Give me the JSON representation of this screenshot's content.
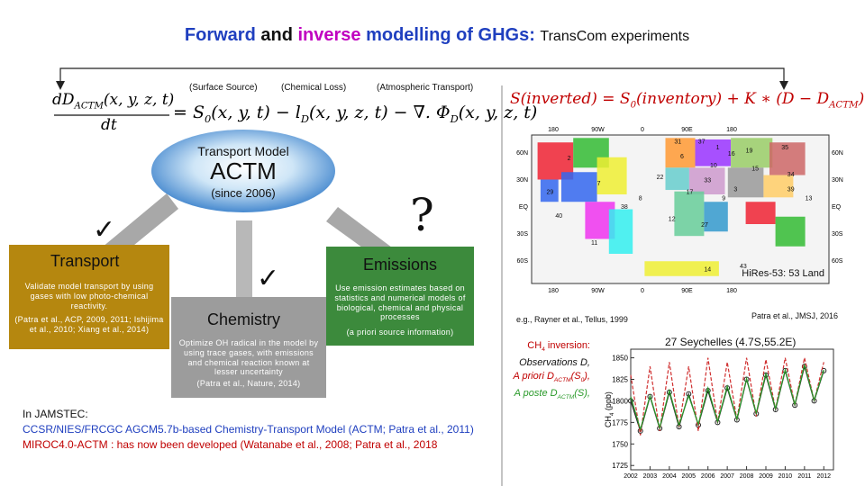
{
  "title": [
    {
      "text": "Forward",
      "color": "#1f3fbf"
    },
    {
      "text": " and ",
      "color": "#111111"
    },
    {
      "text": "inverse",
      "color": "#c000c0"
    },
    {
      "text": " modelling of GHGs: ",
      "color": "#1f3fbf"
    }
  ],
  "subtitle": "TransCom experiments",
  "equation_labels": [
    "(Surface Source)",
    "(Chemical Loss)",
    "(Atmospheric Transport)"
  ],
  "forward_equation": {
    "numerator": [
      {
        "text": "dD"
      },
      {
        "text": "ACTM",
        "sub": true
      },
      {
        "text": "(x, y, z, t)"
      }
    ],
    "denominator": [
      {
        "text": "dt"
      }
    ],
    "right_side": [
      {
        "text": "= S"
      },
      {
        "text": "0",
        "sub": true
      },
      {
        "text": "(x, y, t) − l"
      },
      {
        "text": "D",
        "sub": true
      },
      {
        "text": "(x, y, z, t) − ∇. Φ"
      },
      {
        "text": "D",
        "sub": true
      },
      {
        "text": "(x, y, z, t)"
      }
    ]
  },
  "inverse_equation": [
    {
      "text": "S(inverted) = S"
    },
    {
      "text": "0",
      "sub": true
    },
    {
      "text": "(inventory) + K ∗ (D − D"
    },
    {
      "text": "ACTM",
      "sub": true
    },
    {
      "text": ")"
    }
  ],
  "model": {
    "heading": "Transport Model",
    "name": "ACTM",
    "since": "(since 2006)"
  },
  "marks": {
    "check": "✓",
    "question": "?"
  },
  "boxes": {
    "transport": {
      "title": "Transport",
      "body": "Validate model transport by using gases with low photo-chemical reactivity.",
      "citation": "(Patra et al., ACP, 2009, 2011; Ishijima et al., 2010; Xiang et al., 2014)"
    },
    "chemistry": {
      "title": "Chemistry",
      "body": "Optimize OH radical in the model by using trace gases, with emissions and chemical reaction known at lesser uncertainty",
      "citation": "(Patra et al., Nature, 2014)"
    },
    "emissions": {
      "title": "Emissions",
      "body": "Use emission estimates based on statistics and numerical models of biological, chemical and physical processes",
      "citation": "(a priori source information)"
    }
  },
  "jamstec": {
    "heading": "In JAMSTEC:",
    "lines": [
      {
        "text": "CCSR/NIES/FRCGC AGCM5.7b-based Chemistry-Transport Model (ACTM; Patra et al., 2011)",
        "color": "#1f3fbf"
      },
      {
        "text": "MIROC4.0-ACTM : has now been developed (Watanabe et al., 2008; Patra et al., 2018",
        "color": "#c00000"
      }
    ]
  },
  "map": {
    "top_ticks": [
      "180",
      "90W",
      "0",
      "90E",
      "180"
    ],
    "bottom_ticks": [
      "180",
      "90W",
      "0",
      "90E",
      "180"
    ],
    "left_ticks": [
      "60N",
      "30N",
      "EQ",
      "30S",
      "60S"
    ],
    "right_ticks": [
      "60N",
      "30N",
      "EQ",
      "30S",
      "60S"
    ],
    "region_numbers": [
      "31",
      "37",
      "1",
      "16",
      "19",
      "35",
      "2",
      "15",
      "34",
      "6",
      "10",
      "22",
      "3",
      "17",
      "13",
      "7",
      "38",
      "33",
      "9",
      "39",
      "29",
      "11",
      "40",
      "27",
      "14",
      "43",
      "8",
      "12"
    ],
    "caption": "HiRes-53: 53 Land",
    "reference": "e.g., Rayner et al., Tellus, 1999"
  },
  "chart_reference": "Patra et al., JMSJ, 2016",
  "inversion_legend": [
    {
      "parts": [
        {
          "text": "CH"
        },
        {
          "text": "4",
          "sub": true
        },
        {
          "text": " inversion:"
        }
      ],
      "color": "#c00000",
      "italic": false
    },
    {
      "parts": [
        {
          "text": "Observations D,"
        }
      ],
      "color": "#111111",
      "italic": true
    },
    {
      "parts": [
        {
          "text": "A priori D"
        },
        {
          "text": "ACTM",
          "sub": true
        },
        {
          "text": "(S"
        },
        {
          "text": "0",
          "sub": true
        },
        {
          "text": "),"
        }
      ],
      "color": "#c00000",
      "italic": true
    },
    {
      "parts": [
        {
          "text": "A poste D"
        },
        {
          "text": "ACTM",
          "sub": true
        },
        {
          "text": "(S),"
        }
      ],
      "color": "#2a9a2a",
      "italic": true
    }
  ],
  "chart_data": {
    "type": "line",
    "title": "27 Seychelles (4.7S,55.2E)",
    "ylabel": [
      {
        "text": "CH"
      },
      {
        "text": "4",
        "sub": true
      },
      {
        "text": " (ppb)"
      }
    ],
    "x": [
      2002,
      2002.5,
      2003,
      2003.5,
      2004,
      2004.5,
      2005,
      2005.5,
      2006,
      2006.5,
      2007,
      2007.5,
      2008,
      2008.5,
      2009,
      2009.5,
      2010,
      2010.5,
      2011,
      2011.5,
      2012
    ],
    "series": [
      {
        "name": "Observations",
        "color": "#222222",
        "marker": "circle",
        "values": [
          1800,
          1765,
          1805,
          1768,
          1810,
          1770,
          1808,
          1772,
          1812,
          1775,
          1815,
          1778,
          1825,
          1785,
          1830,
          1790,
          1835,
          1795,
          1840,
          1800,
          1835
        ]
      },
      {
        "name": "A priori",
        "color": "#d03030",
        "dashed": true,
        "values": [
          1830,
          1760,
          1840,
          1765,
          1845,
          1770,
          1840,
          1765,
          1850,
          1775,
          1845,
          1778,
          1850,
          1782,
          1848,
          1790,
          1850,
          1795,
          1850,
          1800,
          1845
        ]
      },
      {
        "name": "A posteriori",
        "color": "#2a9a2a",
        "values": [
          1805,
          1767,
          1806,
          1769,
          1812,
          1772,
          1806,
          1773,
          1815,
          1776,
          1817,
          1779,
          1826,
          1786,
          1832,
          1791,
          1836,
          1796,
          1842,
          1801,
          1836
        ]
      }
    ],
    "xlim": [
      2002,
      2012.5
    ],
    "ylim": [
      1720,
      1860
    ],
    "xticks": [
      2002,
      2003,
      2004,
      2005,
      2006,
      2007,
      2008,
      2009,
      2010,
      2011,
      2012
    ],
    "yticks": [
      1725,
      1750,
      1775,
      1800,
      1825,
      1850
    ]
  }
}
